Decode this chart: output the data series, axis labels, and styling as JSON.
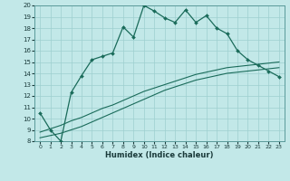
{
  "xlabel": "Humidex (Indice chaleur)",
  "xlim": [
    -0.5,
    23.5
  ],
  "ylim": [
    8,
    20
  ],
  "xticks": [
    0,
    1,
    2,
    3,
    4,
    5,
    6,
    7,
    8,
    9,
    10,
    11,
    12,
    13,
    14,
    15,
    16,
    17,
    18,
    19,
    20,
    21,
    22,
    23
  ],
  "yticks": [
    8,
    9,
    10,
    11,
    12,
    13,
    14,
    15,
    16,
    17,
    18,
    19,
    20
  ],
  "bg_color": "#c2e8e8",
  "grid_color": "#9dcfcf",
  "line_color": "#1a6b5a",
  "line1_x": [
    0,
    1,
    2,
    3,
    4,
    5,
    6,
    7,
    8,
    9,
    10,
    11,
    12,
    13,
    14,
    15,
    16,
    17,
    18,
    19,
    20,
    21,
    22,
    23
  ],
  "line1_y": [
    10.5,
    9.0,
    8.0,
    12.3,
    13.8,
    15.2,
    15.5,
    15.8,
    18.1,
    17.2,
    20.0,
    19.5,
    18.9,
    18.5,
    19.6,
    18.5,
    19.1,
    18.0,
    17.5,
    16.0,
    15.2,
    14.7,
    14.2,
    13.7
  ],
  "line2_x": [
    0,
    1,
    2,
    3,
    4,
    5,
    6,
    7,
    8,
    9,
    10,
    11,
    12,
    13,
    14,
    15,
    16,
    17,
    18,
    19,
    20,
    21,
    22,
    23
  ],
  "line2_y": [
    8.3,
    8.5,
    8.7,
    9.0,
    9.3,
    9.7,
    10.1,
    10.5,
    10.9,
    11.3,
    11.7,
    12.1,
    12.5,
    12.8,
    13.1,
    13.4,
    13.6,
    13.8,
    14.0,
    14.1,
    14.2,
    14.3,
    14.4,
    14.5
  ],
  "line3_x": [
    0,
    1,
    2,
    3,
    4,
    5,
    6,
    7,
    8,
    9,
    10,
    11,
    12,
    13,
    14,
    15,
    16,
    17,
    18,
    19,
    20,
    21,
    22,
    23
  ],
  "line3_y": [
    8.8,
    9.1,
    9.4,
    9.8,
    10.1,
    10.5,
    10.9,
    11.2,
    11.6,
    12.0,
    12.4,
    12.7,
    13.0,
    13.3,
    13.6,
    13.9,
    14.1,
    14.3,
    14.5,
    14.6,
    14.7,
    14.8,
    14.9,
    15.0
  ]
}
